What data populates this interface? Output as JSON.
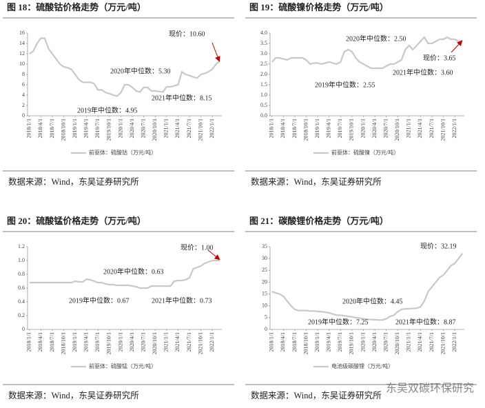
{
  "chart_data": [
    {
      "type": "line",
      "title": "图 18：硫酸钴价格走势（万元/吨）",
      "source": "数据来源：Wind，东吴证券研究所",
      "categories": [
        "2018/1/1",
        null,
        null,
        "2018/4/1",
        null,
        null,
        "2018/7/1",
        null,
        null,
        "2018/10/1",
        null,
        null,
        "2019/1/1",
        null,
        null,
        "2019/4/1",
        null,
        null,
        "2019/7/1",
        null,
        null,
        "2019/10/1",
        null,
        null,
        "2020/1/1",
        null,
        null,
        "2020/4/1",
        null,
        null,
        "2020/7/1",
        null,
        null,
        "2020/10/1",
        null,
        null,
        "2021/1/1",
        null,
        null,
        "2021/4/1",
        null,
        null,
        "2021/7/1",
        null,
        null,
        "2021/10/1",
        null,
        null,
        "2022/1/1",
        null,
        null
      ],
      "series": [
        {
          "name": "前驱体：硫酸钴（万元/吨）",
          "color": "#c8c8c8",
          "values": [
            12,
            12.5,
            14,
            15,
            15,
            13,
            12,
            11,
            10,
            9.5,
            9.3,
            9,
            8,
            7,
            6.5,
            6.5,
            6.5,
            6.2,
            5,
            5,
            4.5,
            4.3,
            4,
            3.8,
            4.5,
            6,
            6,
            5.5,
            4.8,
            4.6,
            5.5,
            5.5,
            4.8,
            4.8,
            4.7,
            4.6,
            5.6,
            5.6,
            5.8,
            6,
            8.5,
            8,
            7.8,
            7.5,
            7.3,
            8,
            8.2,
            8.5,
            9,
            10,
            10.6
          ]
        }
      ],
      "ylim": [
        0,
        16
      ],
      "yticks": [
        0,
        2,
        4,
        6,
        8,
        10,
        12,
        14,
        16
      ],
      "annotations": [
        "现价：10.60",
        "2020年中位数：5.30",
        "2021年中位数：8.15",
        "2019年中位数：4.95"
      ]
    },
    {
      "type": "line",
      "title": "图 19：硫酸镍价格走势（万元/吨）",
      "source": "数据来源：Wind，东吴证券研究所",
      "categories": [
        "2018/1/1",
        null,
        null,
        "2018/4/1",
        null,
        null,
        "2018/7/1",
        null,
        null,
        "2018/10/1",
        null,
        null,
        "2019/1/1",
        null,
        null,
        "2019/4/1",
        null,
        null,
        "2019/7/1",
        null,
        null,
        "2019/10/1",
        null,
        null,
        "2020/1/1",
        null,
        null,
        "2020/4/1",
        null,
        null,
        "2020/7/1",
        null,
        null,
        "2020/10/1",
        null,
        null,
        "2021/1/1",
        null,
        null,
        "2021/4/1",
        null,
        null,
        "2021/7/1",
        null,
        null,
        "2021/10/1",
        null,
        null,
        "2022/1/1",
        null,
        null
      ],
      "series": [
        {
          "name": "前驱体：硫酸镍（万元/吨）",
          "color": "#c8c8c8",
          "values": [
            2.6,
            2.8,
            2.8,
            2.75,
            2.7,
            2.8,
            2.8,
            2.8,
            2.8,
            2.7,
            2.5,
            2.55,
            2.55,
            2.5,
            2.55,
            2.6,
            2.55,
            2.5,
            2.6,
            3.1,
            3.2,
            3.1,
            2.8,
            2.6,
            2.5,
            2.4,
            2.3,
            2.3,
            2.3,
            2.3,
            2.4,
            2.5,
            2.5,
            2.6,
            2.7,
            3.2,
            3.4,
            3.2,
            3.4,
            3.6,
            3.8,
            3.5,
            3.5,
            3.6,
            3.7,
            3.7,
            3.8,
            3.7,
            3.7,
            3.6,
            3.65
          ]
        }
      ],
      "ylim": [
        0,
        4
      ],
      "yticks": [
        {
          "value": 0,
          "label": "0.0"
        },
        0.5,
        {
          "value": 1,
          "label": "1.0"
        },
        1.5,
        {
          "value": 2,
          "label": "2.0"
        },
        2.5,
        {
          "value": 3,
          "label": "3.0"
        },
        3.5,
        {
          "value": 4,
          "label": "4.0"
        }
      ],
      "annotations": [
        "2020年中位数：2.50",
        "现价：3.65",
        "2021年中位数：3.60",
        "2019年中位数：2.55"
      ]
    },
    {
      "type": "line",
      "title": "图 20：硫酸锰价格走势（万元/吨）",
      "source": "数据来源：Wind，东吴证券研究所",
      "categories": [
        "2018/1/1",
        null,
        null,
        "2018/4/1",
        null,
        null,
        "2018/7/1",
        null,
        null,
        "2018/10/1",
        null,
        null,
        "2019/1/1",
        null,
        null,
        "2019/4/1",
        null,
        null,
        "2019/7/1",
        null,
        null,
        "2019/10/1",
        null,
        null,
        "2020/1/1",
        null,
        null,
        "2020/4/1",
        null,
        null,
        "2020/7/1",
        null,
        null,
        "2020/10/1",
        null,
        null,
        "2021/1/1",
        null,
        null,
        "2021/4/1",
        null,
        null,
        "2021/7/1",
        null,
        null,
        "2021/10/1",
        null,
        null,
        "2022/1/1",
        null,
        null
      ],
      "series": [
        {
          "name": "前驱体：硫酸锰（万元/吨）",
          "color": "#c8c8c8",
          "values": [
            0.68,
            0.68,
            0.68,
            0.68,
            0.68,
            0.68,
            0.68,
            0.68,
            0.68,
            0.68,
            0.68,
            0.68,
            0.7,
            0.69,
            0.69,
            0.73,
            0.72,
            0.7,
            0.68,
            0.68,
            0.66,
            0.65,
            0.65,
            0.64,
            0.64,
            0.64,
            0.64,
            0.63,
            0.62,
            0.6,
            0.6,
            0.6,
            0.63,
            0.63,
            0.63,
            0.63,
            0.63,
            0.63,
            0.7,
            0.71,
            0.71,
            0.72,
            0.75,
            0.88,
            0.9,
            0.92,
            0.96,
            0.98,
            1,
            1,
            1
          ]
        }
      ],
      "ylim": [
        0,
        1.2
      ],
      "yticks": [
        0,
        0.2,
        0.4,
        0.6,
        0.8,
        {
          "value": 1,
          "label": "1.0"
        },
        1.2
      ],
      "annotations": [
        "现价：1.00",
        "2020年中位数：0.63",
        "2019年中位数：0.67",
        "2021年中位数：0.73"
      ]
    },
    {
      "type": "line",
      "title": "图 21：碳酸锂价格走势（万元/吨）",
      "source": "数据来源：Wind，东吴证券研究所",
      "categories": [
        "2018/1/1",
        null,
        null,
        "2018/4/1",
        null,
        null,
        "2018/7/1",
        null,
        null,
        "2018/10/1",
        null,
        null,
        "2019/1/1",
        null,
        null,
        "2019/4/1",
        null,
        null,
        "2019/7/1",
        null,
        null,
        "2019/10/1",
        null,
        null,
        "2020/1/1",
        null,
        null,
        "2020/4/1",
        null,
        null,
        "2020/7/1",
        null,
        null,
        "2020/10/1",
        null,
        null,
        "2021/1/1",
        null,
        null,
        "2021/4/1",
        null,
        null,
        "2021/7/1",
        null,
        null,
        "2021/10/1",
        null,
        null,
        "2022/1/1",
        null,
        null
      ],
      "series": [
        {
          "name": "电池级碳酸锂（万元/吨）",
          "color": "#c8c8c8",
          "values": [
            16,
            15.5,
            15,
            14,
            12,
            10,
            8.5,
            8,
            8,
            8,
            7.8,
            7.8,
            7.6,
            7.5,
            7.3,
            7,
            6.5,
            6,
            6,
            5.8,
            5.5,
            5.3,
            5,
            4.8,
            4.5,
            4.3,
            4.2,
            4.1,
            4,
            4,
            4.5,
            5.5,
            6,
            7.5,
            8.5,
            8.7,
            8.8,
            8.9,
            9,
            9.5,
            12,
            16,
            18,
            20,
            22,
            23,
            25,
            27,
            28,
            30,
            32.19
          ]
        }
      ],
      "ylim": [
        0,
        35
      ],
      "yticks": [
        0,
        5,
        10,
        15,
        20,
        25,
        30,
        35
      ],
      "annotations": [
        "现价：32.19",
        "2020年中位数：4.45",
        "2019年中位数：7.25",
        "2021年中位数：8.87"
      ]
    }
  ],
  "watermark": "东吴双碳环保研究"
}
